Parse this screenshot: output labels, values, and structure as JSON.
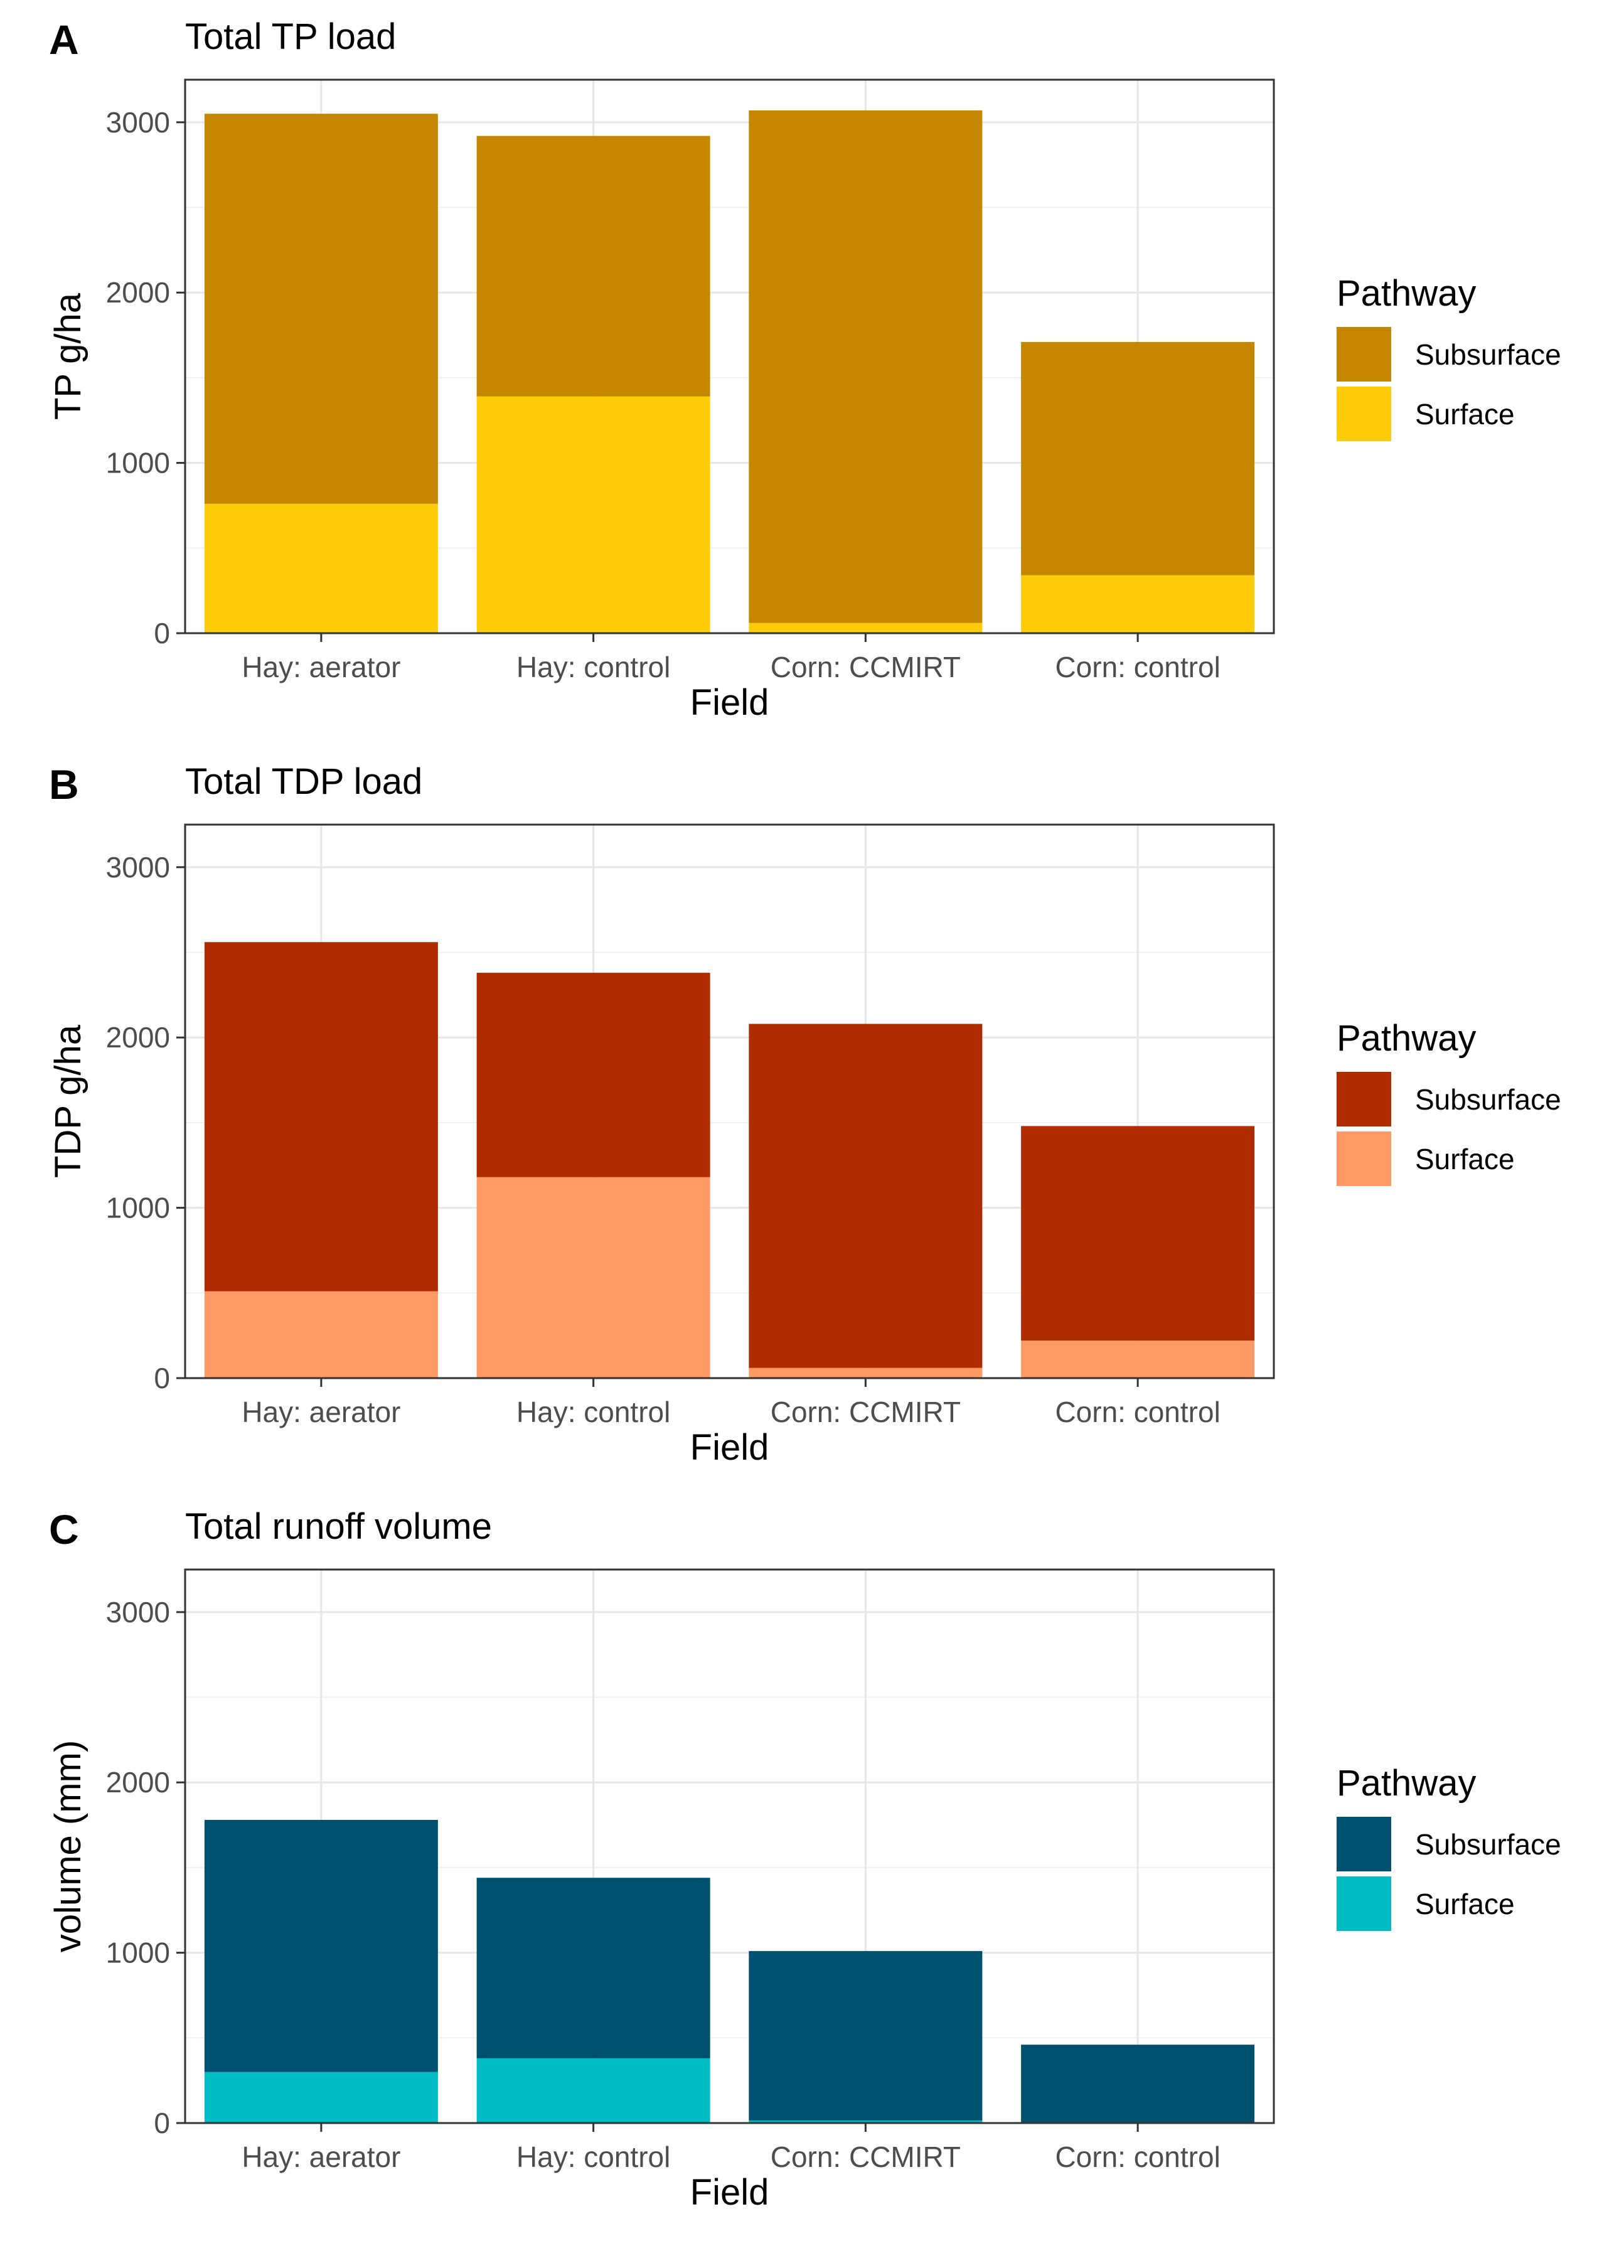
{
  "chart_data": [
    {
      "panel": "A",
      "type": "bar",
      "stacked": true,
      "title": "Total TP load",
      "xlabel": "Field",
      "ylabel": "TP g/ha",
      "ylim": [
        0,
        3250
      ],
      "yticks": [
        0,
        1000,
        2000,
        3000
      ],
      "categories": [
        "Hay: aerator",
        "Hay: control",
        "Corn: CCMIRT",
        "Corn: control"
      ],
      "series": [
        {
          "name": "Surface",
          "color": "#FFCC0A",
          "values": [
            760,
            1390,
            60,
            340
          ]
        },
        {
          "name": "Subsurface",
          "color": "#C68700",
          "values": [
            2290,
            1530,
            3010,
            1370
          ]
        }
      ],
      "legend": {
        "title": "Pathway",
        "position": "right",
        "entries": [
          "Subsurface",
          "Surface"
        ]
      }
    },
    {
      "panel": "B",
      "type": "bar",
      "stacked": true,
      "title": "Total TDP load",
      "xlabel": "Field",
      "ylabel": "TDP g/ha",
      "ylim": [
        0,
        3250
      ],
      "yticks": [
        0,
        1000,
        2000,
        3000
      ],
      "categories": [
        "Hay: aerator",
        "Hay: control",
        "Corn: CCMIRT",
        "Corn: control"
      ],
      "series": [
        {
          "name": "Surface",
          "color": "#FF9966",
          "values": [
            510,
            1180,
            60,
            220
          ]
        },
        {
          "name": "Subsurface",
          "color": "#AF2C00",
          "values": [
            2050,
            1200,
            2020,
            1260
          ]
        }
      ],
      "legend": {
        "title": "Pathway",
        "position": "right",
        "entries": [
          "Subsurface",
          "Surface"
        ]
      }
    },
    {
      "panel": "C",
      "type": "bar",
      "stacked": true,
      "title": "Total runoff volume",
      "xlabel": "Field",
      "ylabel": "volume (mm)",
      "ylim": [
        0,
        3250
      ],
      "yticks": [
        0,
        1000,
        2000,
        3000
      ],
      "categories": [
        "Hay: aerator",
        "Hay: control",
        "Corn: CCMIRT",
        "Corn: control"
      ],
      "series": [
        {
          "name": "Surface",
          "color": "#00BCC4",
          "values": [
            300,
            380,
            15,
            5
          ]
        },
        {
          "name": "Subsurface",
          "color": "#005070",
          "values": [
            1480,
            1060,
            995,
            455
          ]
        }
      ],
      "legend": {
        "title": "Pathway",
        "position": "right",
        "entries": [
          "Subsurface",
          "Surface"
        ]
      }
    }
  ]
}
